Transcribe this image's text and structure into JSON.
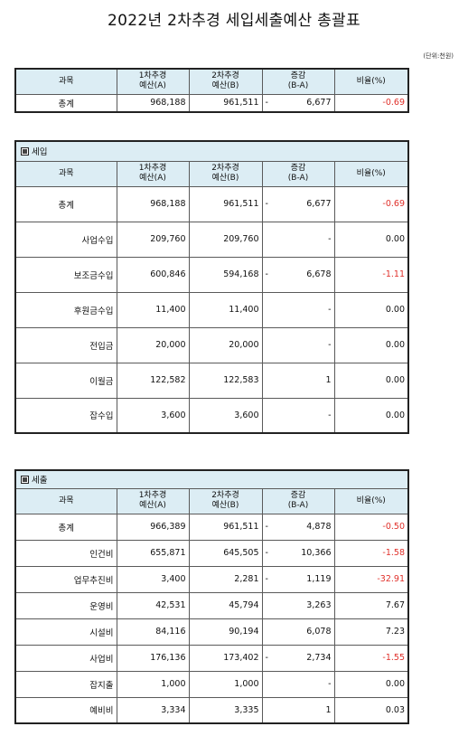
{
  "title": "2022년 2차추경 세입세출예산 총괄표",
  "unit": "(단위:천원)",
  "headers": {
    "subject": "과목",
    "budget_a_1": "1차추경",
    "budget_a_2": "예산(A)",
    "budget_b_1": "2차추경",
    "budget_b_2": "예산(B)",
    "diff_1": "증감",
    "diff_2": "(B-A)",
    "ratio": "비율(%)"
  },
  "summary": {
    "name": "총계",
    "a": "968,188",
    "b": "961,511",
    "sign": "-",
    "diff": "6,677",
    "ratio": "-0.69"
  },
  "revenue": {
    "section_label": "세입",
    "rows": [
      {
        "name": "총계",
        "a": "968,188",
        "b": "961,511",
        "sign": "-",
        "diff": "6,677",
        "ratio": "-0.69"
      },
      {
        "name": "사업수입",
        "a": "209,760",
        "b": "209,760",
        "sign": "",
        "diff": "-",
        "ratio": "0.00"
      },
      {
        "name": "보조금수입",
        "a": "600,846",
        "b": "594,168",
        "sign": "-",
        "diff": "6,678",
        "ratio": "-1.11"
      },
      {
        "name": "후원금수입",
        "a": "11,400",
        "b": "11,400",
        "sign": "",
        "diff": "-",
        "ratio": "0.00"
      },
      {
        "name": "전입금",
        "a": "20,000",
        "b": "20,000",
        "sign": "",
        "diff": "-",
        "ratio": "0.00"
      },
      {
        "name": "이월금",
        "a": "122,582",
        "b": "122,583",
        "sign": "",
        "diff": "1",
        "ratio": "0.00"
      },
      {
        "name": "잡수입",
        "a": "3,600",
        "b": "3,600",
        "sign": "",
        "diff": "-",
        "ratio": "0.00"
      }
    ]
  },
  "expense": {
    "section_label": "세출",
    "rows": [
      {
        "name": "총계",
        "a": "966,389",
        "b": "961,511",
        "sign": "-",
        "diff": "4,878",
        "ratio": "-0.50"
      },
      {
        "name": "인건비",
        "a": "655,871",
        "b": "645,505",
        "sign": "-",
        "diff": "10,366",
        "ratio": "-1.58"
      },
      {
        "name": "업무추진비",
        "a": "3,400",
        "b": "2,281",
        "sign": "-",
        "diff": "1,119",
        "ratio": "-32.91"
      },
      {
        "name": "운영비",
        "a": "42,531",
        "b": "45,794",
        "sign": "",
        "diff": "3,263",
        "ratio": "7.67"
      },
      {
        "name": "시설비",
        "a": "84,116",
        "b": "90,194",
        "sign": "",
        "diff": "6,078",
        "ratio": "7.23"
      },
      {
        "name": "사업비",
        "a": "176,136",
        "b": "173,402",
        "sign": "-",
        "diff": "2,734",
        "ratio": "-1.55"
      },
      {
        "name": "잡지출",
        "a": "1,000",
        "b": "1,000",
        "sign": "",
        "diff": "-",
        "ratio": "0.00"
      },
      {
        "name": "예비비",
        "a": "3,334",
        "b": "3,335",
        "sign": "",
        "diff": "1",
        "ratio": "0.03"
      }
    ]
  }
}
